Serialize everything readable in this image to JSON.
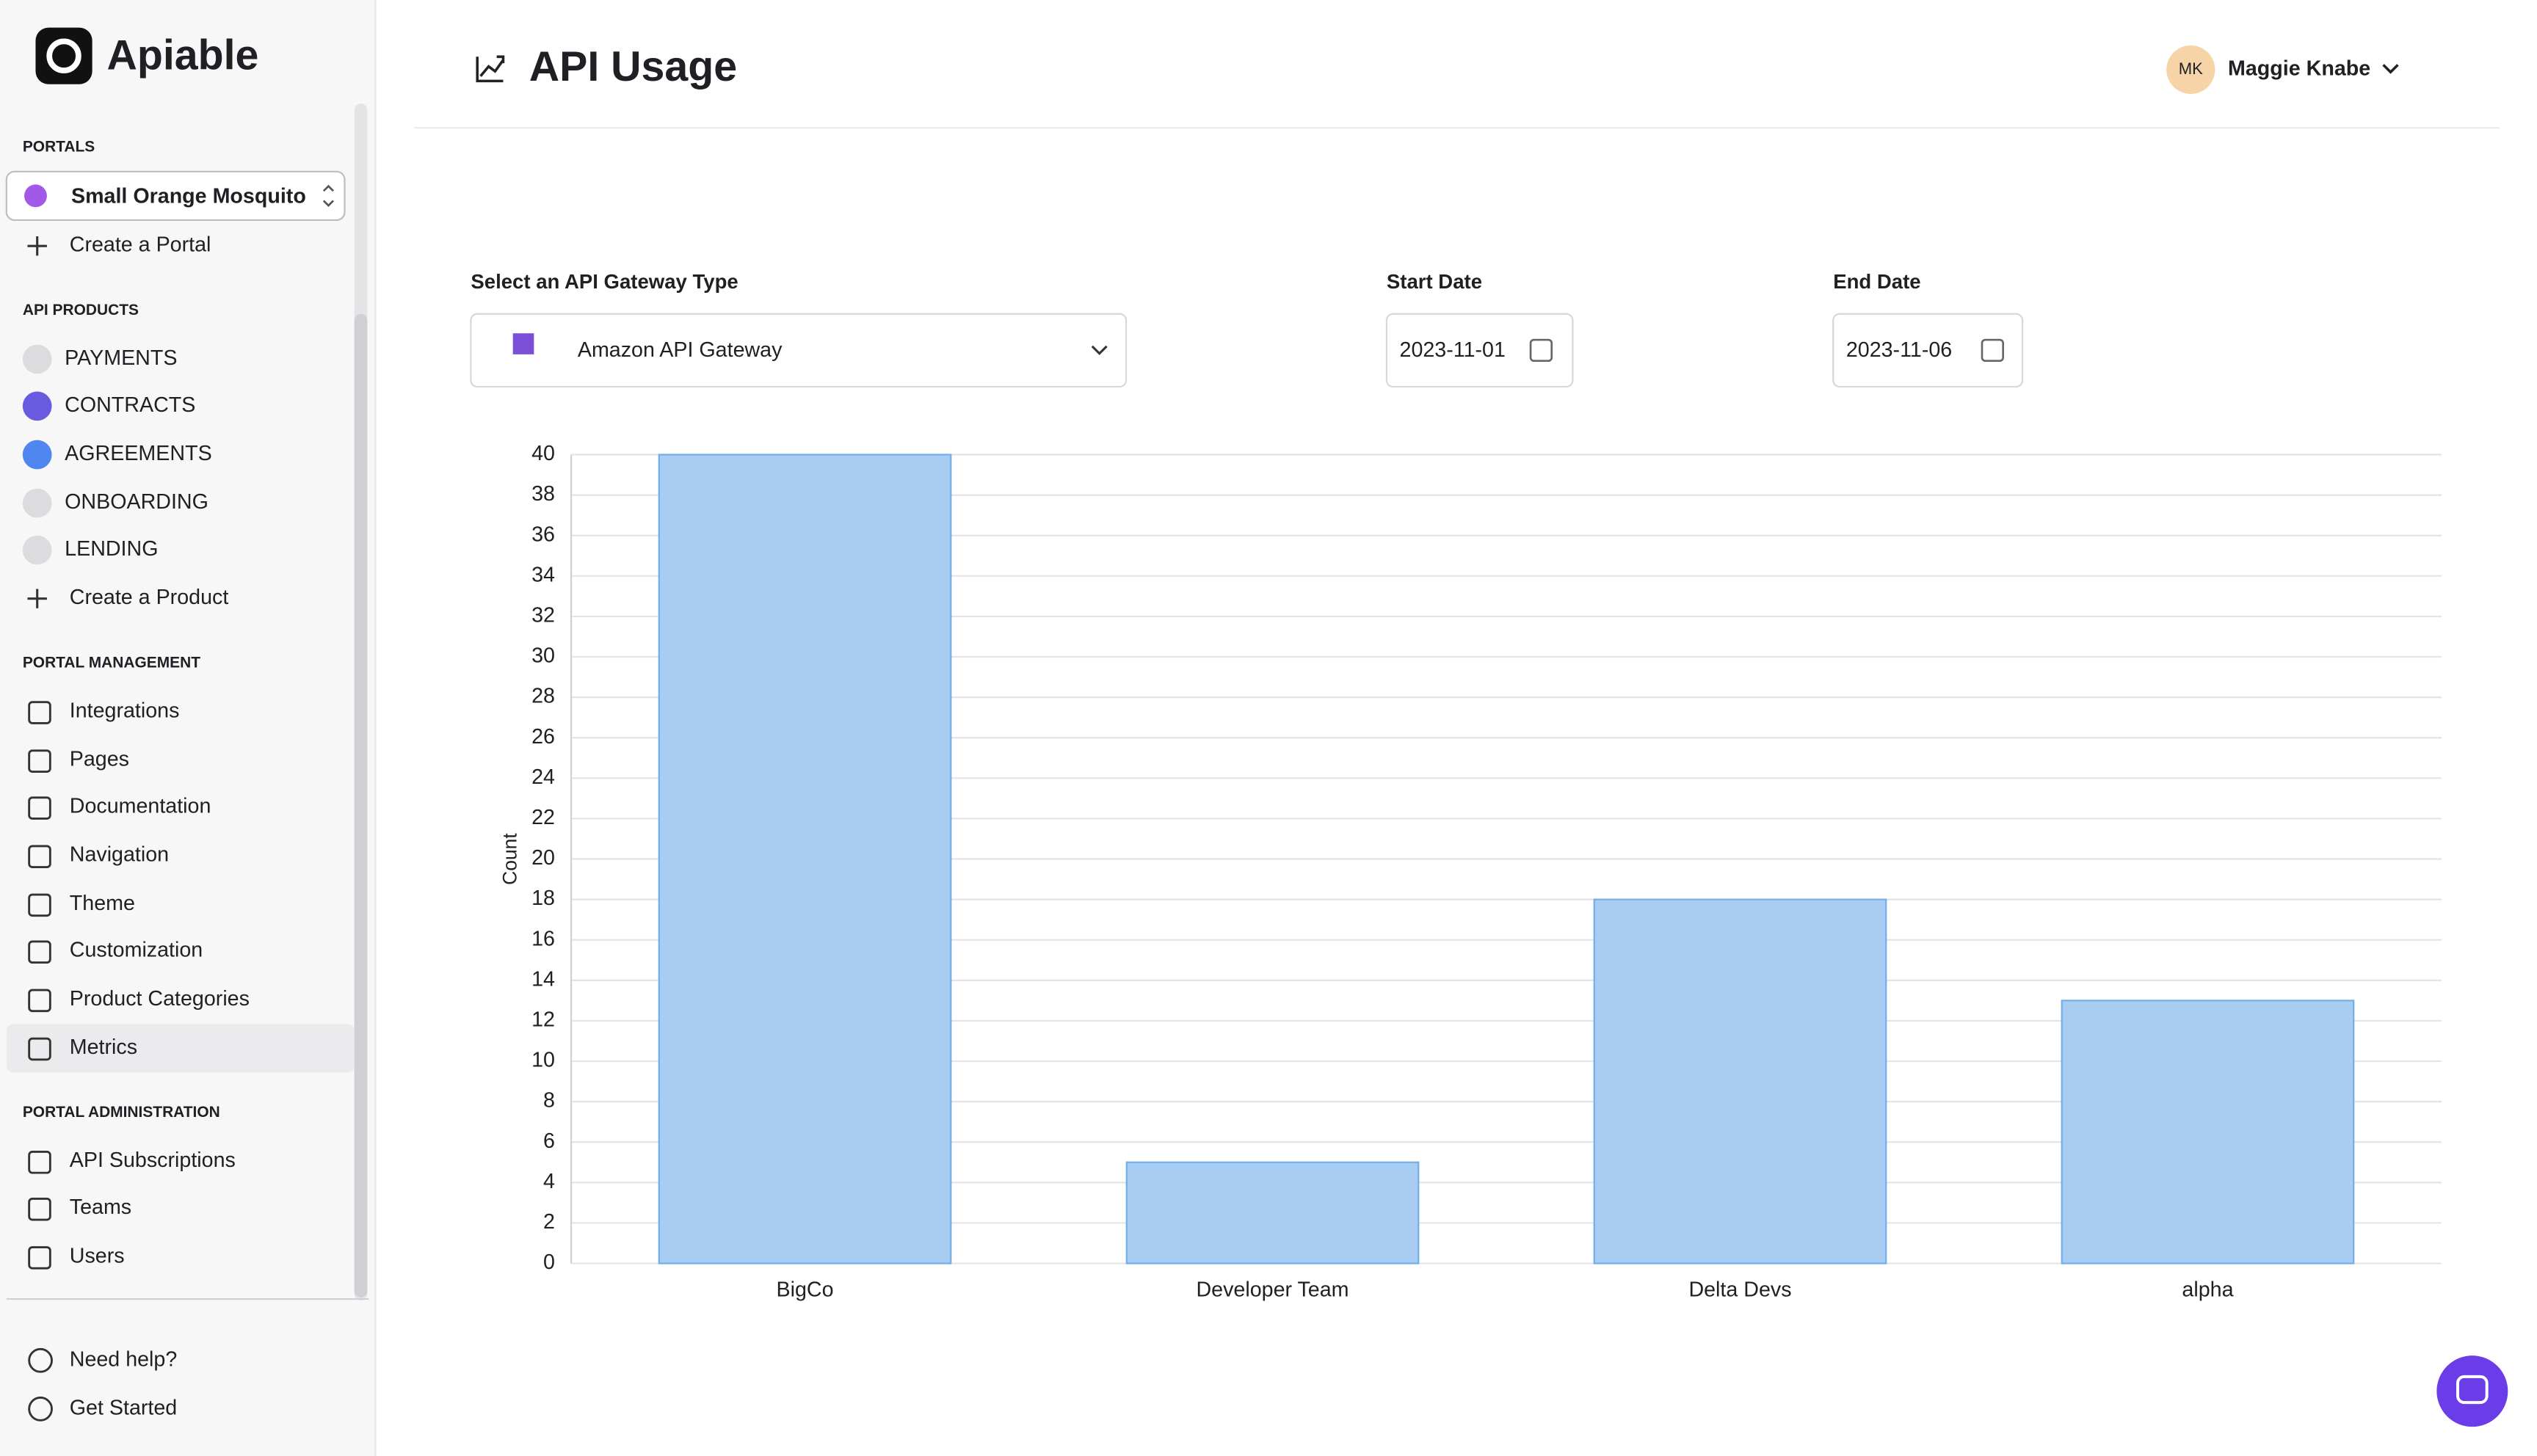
{
  "brand": "Apiable",
  "sidebar": {
    "portals_label": "PORTALS",
    "portal_selected": "Small Orange Mosquito",
    "create_portal": "Create a Portal",
    "products_label": "API PRODUCTS",
    "products": [
      {
        "name": "PAYMENTS",
        "color": "#dcdcdf"
      },
      {
        "name": "CONTRACTS",
        "color": "#6a5ae0"
      },
      {
        "name": "AGREEMENTS",
        "color": "#4f86f0"
      },
      {
        "name": "ONBOARDING",
        "color": "#dcdcdf"
      },
      {
        "name": "LENDING",
        "color": "#dcdcdf"
      }
    ],
    "create_product": "Create a Product",
    "management_label": "PORTAL MANAGEMENT",
    "management": [
      "Integrations",
      "Pages",
      "Documentation",
      "Navigation",
      "Theme",
      "Customization",
      "Product Categories",
      "Metrics"
    ],
    "administration_label": "PORTAL ADMINISTRATION",
    "administration": [
      "API Subscriptions",
      "Teams",
      "Users"
    ],
    "footer": [
      "Need help?",
      "Get Started"
    ]
  },
  "header": {
    "title": "API Usage",
    "user_initials": "MK",
    "user_name": "Maggie Knabe"
  },
  "filters": {
    "gateway_label": "Select an API Gateway Type",
    "gateway_value": "Amazon API Gateway",
    "start_label": "Start Date",
    "start_value": "2023-11-01",
    "end_label": "End Date",
    "end_value": "2023-11-06"
  },
  "chart_data": {
    "type": "bar",
    "y_label": "Count",
    "categories": [
      "BigCo",
      "Developer Team",
      "Delta Devs",
      "alpha"
    ],
    "values": [
      40,
      5,
      18,
      13
    ],
    "color": "#a9cdf2",
    "ylim": [
      0,
      40
    ],
    "yticks": [
      0,
      2,
      4,
      6,
      8,
      10,
      12,
      14,
      16,
      18,
      20,
      22,
      24,
      26,
      28,
      30,
      32,
      34,
      36,
      38,
      40
    ],
    "grid": true
  }
}
